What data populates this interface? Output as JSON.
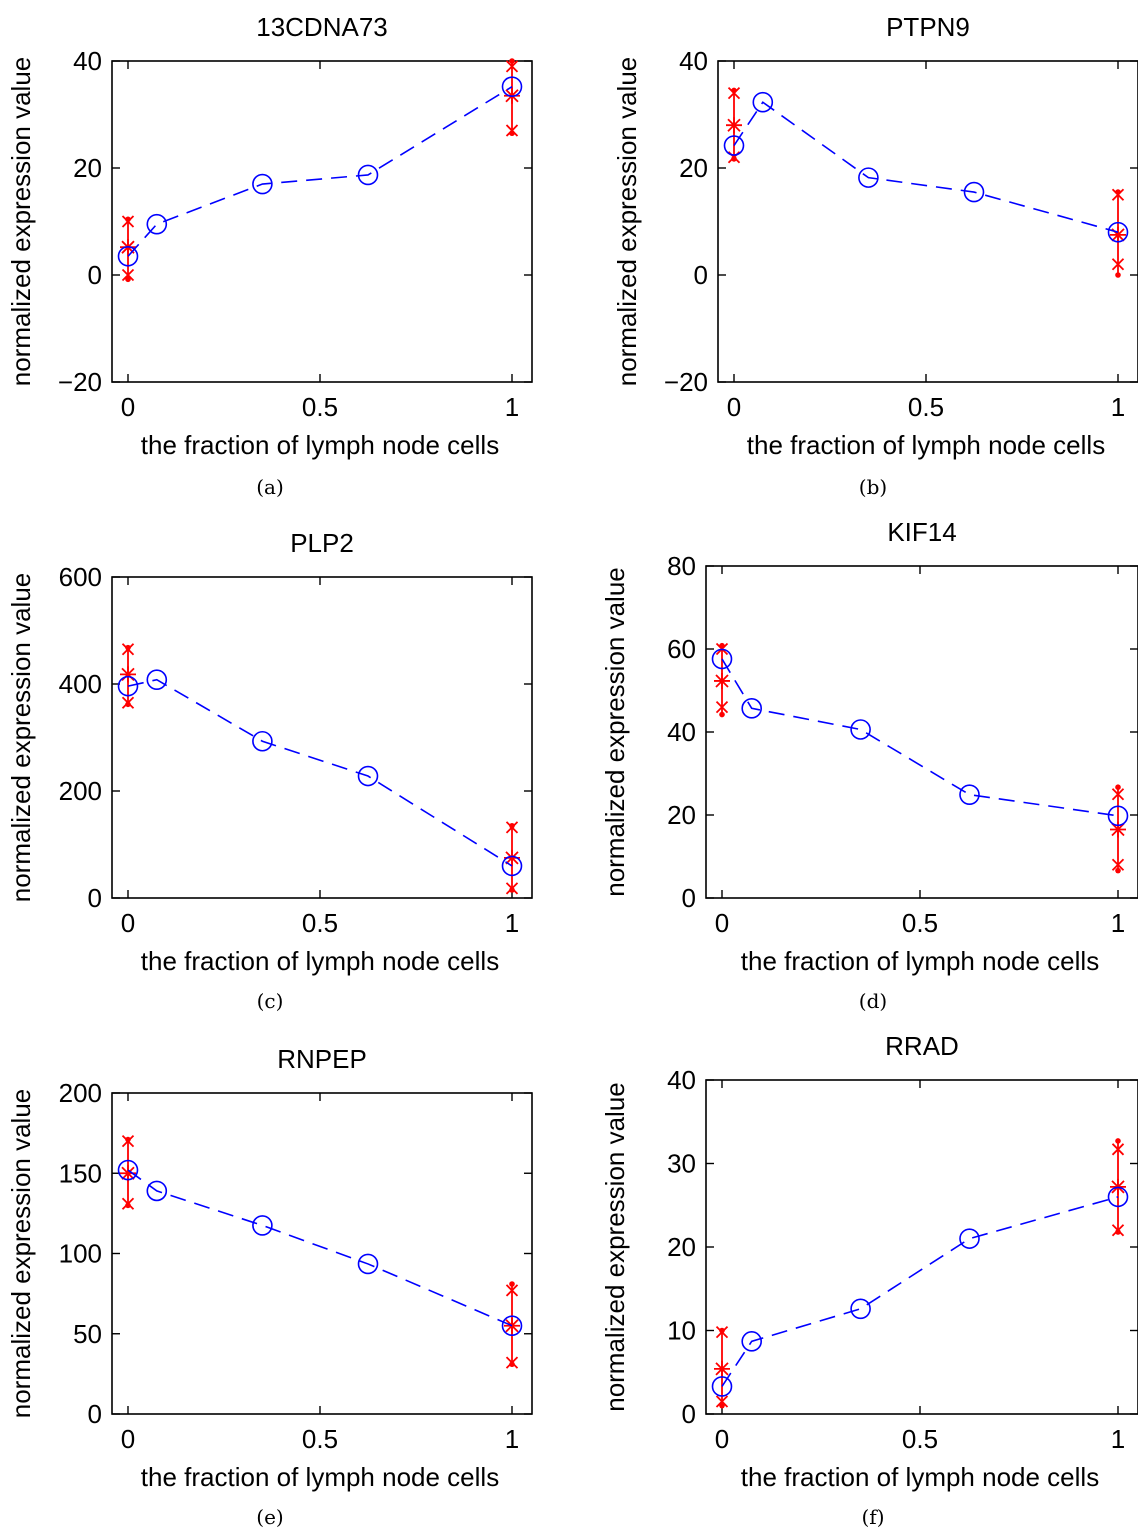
{
  "figure": {
    "panels": [
      {
        "caption": "(a)",
        "chart_data": {
          "type": "line",
          "title": "13CDNA73",
          "xlabel": "the fraction of lymph node cells",
          "ylabel": "normalized expression value",
          "xlim": [
            0,
            1
          ],
          "ylim": [
            -20,
            40
          ],
          "xticks": [
            "0",
            "0.5",
            "1"
          ],
          "yticks": [
            "−20",
            "0",
            "20",
            "40"
          ],
          "ytick_values": [
            -20,
            0,
            20,
            40
          ],
          "xtick_values": [
            0,
            0.5,
            1
          ],
          "series": [
            {
              "marker": "circle",
              "color": "#0000ff",
              "line": "dashed",
              "x": [
                0,
                0.075,
                0.35,
                0.625,
                1
              ],
              "y": [
                3.5,
                9.5,
                17,
                18.7,
                35.2
              ]
            }
          ],
          "error_bars": [
            {
              "x": 0,
              "mean": 5.2,
              "low": -0.8,
              "high": 10.4,
              "q1": 0,
              "q3": 10
            },
            {
              "x": 1,
              "mean": 33.5,
              "low": 26.5,
              "high": 40,
              "q1": 27,
              "q3": 39
            }
          ],
          "grid": false
        }
      },
      {
        "caption": "(b)",
        "chart_data": {
          "type": "line",
          "title": "PTPN9",
          "xlabel": "the fraction of lymph node cells",
          "ylabel": "normalized expression value",
          "xlim": [
            0,
            1
          ],
          "ylim": [
            -20,
            40
          ],
          "xticks": [
            "0",
            "0.5",
            "1"
          ],
          "yticks": [
            "−20",
            "0",
            "20",
            "40"
          ],
          "ytick_values": [
            -20,
            0,
            20,
            40
          ],
          "xtick_values": [
            0,
            0.5,
            1
          ],
          "series": [
            {
              "marker": "circle",
              "color": "#0000ff",
              "line": "dashed",
              "x": [
                0,
                0.075,
                0.35,
                0.625,
                1
              ],
              "y": [
                24.2,
                32.3,
                18.2,
                15.5,
                8
              ]
            }
          ],
          "error_bars": [
            {
              "x": 0,
              "mean": 28,
              "low": 21.7,
              "high": 34.5,
              "q1": 22,
              "q3": 34
            },
            {
              "x": 1,
              "mean": 7.5,
              "low": 0,
              "high": 15.5,
              "q1": 2,
              "q3": 15
            }
          ],
          "grid": false
        }
      },
      {
        "caption": "(c)",
        "chart_data": {
          "type": "line",
          "title": "PLP2",
          "xlabel": "the fraction of lymph node cells",
          "ylabel": "normalized expression value",
          "xlim": [
            0,
            1
          ],
          "ylim": [
            0,
            600
          ],
          "xticks": [
            "0",
            "0.5",
            "1"
          ],
          "yticks": [
            "0",
            "200",
            "400",
            "600"
          ],
          "ytick_values": [
            0,
            200,
            400,
            600
          ],
          "xtick_values": [
            0,
            0.5,
            1
          ],
          "series": [
            {
              "marker": "circle",
              "color": "#0000ff",
              "line": "dashed",
              "x": [
                0,
                0.075,
                0.35,
                0.625,
                1
              ],
              "y": [
                396,
                408,
                293,
                228,
                60
              ]
            }
          ],
          "error_bars": [
            {
              "x": 0,
              "mean": 418,
              "low": 362,
              "high": 468,
              "q1": 365,
              "q3": 465
            },
            {
              "x": 1,
              "mean": 75,
              "low": 15,
              "high": 135,
              "q1": 18,
              "q3": 132
            }
          ],
          "grid": false
        }
      },
      {
        "caption": "(d)",
        "chart_data": {
          "type": "line",
          "title": "KIF14",
          "xlabel": "the fraction of lymph node cells",
          "ylabel": "normalized expression value",
          "xlim": [
            0,
            1
          ],
          "ylim": [
            0,
            80
          ],
          "xticks": [
            "0",
            "0.5",
            "1"
          ],
          "yticks": [
            "0",
            "20",
            "40",
            "60",
            "80"
          ],
          "ytick_values": [
            0,
            20,
            40,
            60,
            80
          ],
          "xtick_values": [
            0,
            0.5,
            1
          ],
          "series": [
            {
              "marker": "circle",
              "color": "#0000ff",
              "line": "dashed",
              "x": [
                0,
                0.075,
                0.35,
                0.625,
                1
              ],
              "y": [
                57.6,
                45.7,
                40.6,
                24.9,
                19.8
              ]
            }
          ],
          "error_bars": [
            {
              "x": 0,
              "mean": 52.3,
              "low": 44.2,
              "high": 60.8,
              "q1": 46,
              "q3": 60
            },
            {
              "x": 1,
              "mean": 16.5,
              "low": 6.6,
              "high": 26.7,
              "q1": 8,
              "q3": 25
            }
          ],
          "grid": false
        }
      },
      {
        "caption": "(e)",
        "chart_data": {
          "type": "line",
          "title": "RNPEP",
          "xlabel": "the fraction of lymph node cells",
          "ylabel": "normalized expression value",
          "xlim": [
            0,
            1
          ],
          "ylim": [
            0,
            200
          ],
          "xticks": [
            "0",
            "0.5",
            "1"
          ],
          "yticks": [
            "0",
            "50",
            "100",
            "150",
            "200"
          ],
          "ytick_values": [
            0,
            50,
            100,
            150,
            200
          ],
          "xtick_values": [
            0,
            0.5,
            1
          ],
          "series": [
            {
              "marker": "circle",
              "color": "#0000ff",
              "line": "dashed",
              "x": [
                0,
                0.075,
                0.35,
                0.625,
                1
              ],
              "y": [
                152,
                139,
                117.5,
                93.5,
                55
              ]
            }
          ],
          "error_bars": [
            {
              "x": 0,
              "mean": 150,
              "low": 130,
              "high": 171,
              "q1": 131,
              "q3": 170
            },
            {
              "x": 1,
              "mean": 55,
              "low": 31,
              "high": 81,
              "q1": 32,
              "q3": 77
            }
          ],
          "grid": false
        }
      },
      {
        "caption": "(f)",
        "chart_data": {
          "type": "line",
          "title": "RRAD",
          "xlabel": "the fraction of lymph node cells",
          "ylabel": "normalized expression value",
          "xlim": [
            0,
            1
          ],
          "ylim": [
            0,
            40
          ],
          "xticks": [
            "0",
            "0.5",
            "1"
          ],
          "yticks": [
            "0",
            "10",
            "20",
            "30",
            "40"
          ],
          "ytick_values": [
            0,
            10,
            20,
            30,
            40
          ],
          "xtick_values": [
            0,
            0.5,
            1
          ],
          "series": [
            {
              "marker": "circle",
              "color": "#0000ff",
              "line": "dashed",
              "x": [
                0,
                0.075,
                0.35,
                0.625,
                1
              ],
              "y": [
                3.3,
                8.7,
                12.6,
                21,
                26
              ]
            }
          ],
          "error_bars": [
            {
              "x": 0,
              "mean": 5.4,
              "low": 1,
              "high": 10,
              "q1": 1.5,
              "q3": 9.8
            },
            {
              "x": 1,
              "mean": 27.2,
              "low": 21.8,
              "high": 32.7,
              "q1": 22,
              "q3": 31.7
            }
          ],
          "grid": false
        }
      }
    ]
  },
  "colors": {
    "line": "#0000ff",
    "error": "#ff0000",
    "axes": "#000000"
  }
}
